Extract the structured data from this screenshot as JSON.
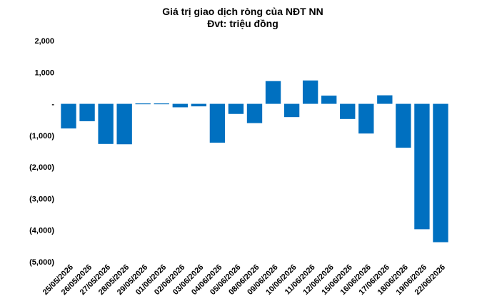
{
  "chart_data": {
    "type": "bar",
    "title": "Giá trị giao dịch ròng của NĐT NN",
    "subtitle": "Đvt: triệu đồng",
    "xlabel": "",
    "ylabel": "",
    "ylim": [
      -5000,
      2000
    ],
    "yticks": [
      2000,
      1000,
      0,
      -1000,
      -2000,
      -3000,
      -4000,
      -5000
    ],
    "ytick_labels": [
      "2,000",
      "1,000",
      "-",
      "(1,000)",
      "(2,000)",
      "(3,000)",
      "(4,000)",
      "(5,000)"
    ],
    "grid": false,
    "bar_color": "#0070C0",
    "categories": [
      "25/05/2026",
      "26/05/2026",
      "27/05/2026",
      "28/05/2026",
      "29/05/2026",
      "01/06/2026",
      "02/06/2026",
      "03/06/2026",
      "04/06/2026",
      "05/06/2026",
      "08/06/2026",
      "09/06/2026",
      "10/06/2026",
      "11/06/2026",
      "12/06/2026",
      "15/06/2026",
      "16/06/2026",
      "17/06/2026",
      "18/06/2026",
      "19/06/2026",
      "22/06/2026"
    ],
    "values": [
      -780,
      -550,
      -1270,
      -1280,
      -20,
      -20,
      -110,
      -80,
      -1230,
      -320,
      -610,
      720,
      -420,
      740,
      260,
      -480,
      -940,
      270,
      -1390,
      -3970,
      -4380
    ]
  }
}
